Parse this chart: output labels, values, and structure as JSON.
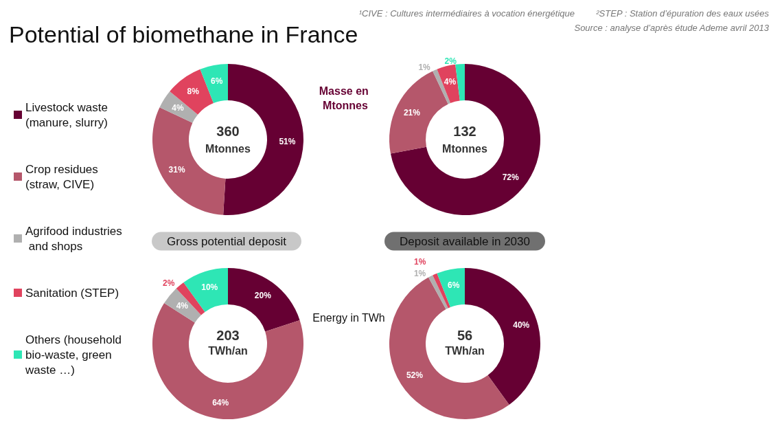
{
  "chart_data": {
    "type": "donut",
    "title": "Potential of biomethane in France",
    "legend": "left",
    "categories": [
      "Livestock waste (manure, slurry)",
      "Crop residues (straw, CIVE)",
      "Agrifood industries and shops",
      "Sanitation (STEP)",
      "Others (household bio-waste, green waste …)"
    ],
    "colors": [
      "#660033",
      "#b5576b",
      "#b0b0b0",
      "#e0435e",
      "#2ee6b5"
    ],
    "series": [
      {
        "values": [
          51,
          31,
          4,
          8,
          6
        ],
        "value_labels": [
          "51%",
          "31%",
          "4%",
          "8%",
          "6%"
        ]
      },
      {
        "values": [
          72,
          21,
          1,
          4,
          2
        ],
        "value_labels": [
          "72%",
          "21%",
          "1%",
          "4%",
          "2%"
        ]
      },
      {
        "values": [
          20,
          64,
          4,
          2,
          10
        ],
        "value_labels": [
          "20%",
          "64%",
          "4%",
          "2%",
          "10%"
        ]
      },
      {
        "values": [
          40,
          52,
          1,
          1,
          6
        ],
        "value_labels": [
          "40%",
          "52%",
          "1%",
          "1%",
          "6%"
        ]
      }
    ],
    "annotations": [
      "360",
      "Mtonnes",
      "132",
      "Mtonnes",
      "203",
      "TWh/an",
      "56",
      "TWh/an",
      "Gross potential deposit",
      "Deposit available in 2030",
      "Masse en Mtonnes",
      "Energy in TWh",
      "¹CIVE : Cultures intermédiaires à vocation énergétique",
      "²STEP : Station d’épuration des eaux usées",
      "Source : analyse d’après étude Ademe avril 2013"
    ]
  }
}
